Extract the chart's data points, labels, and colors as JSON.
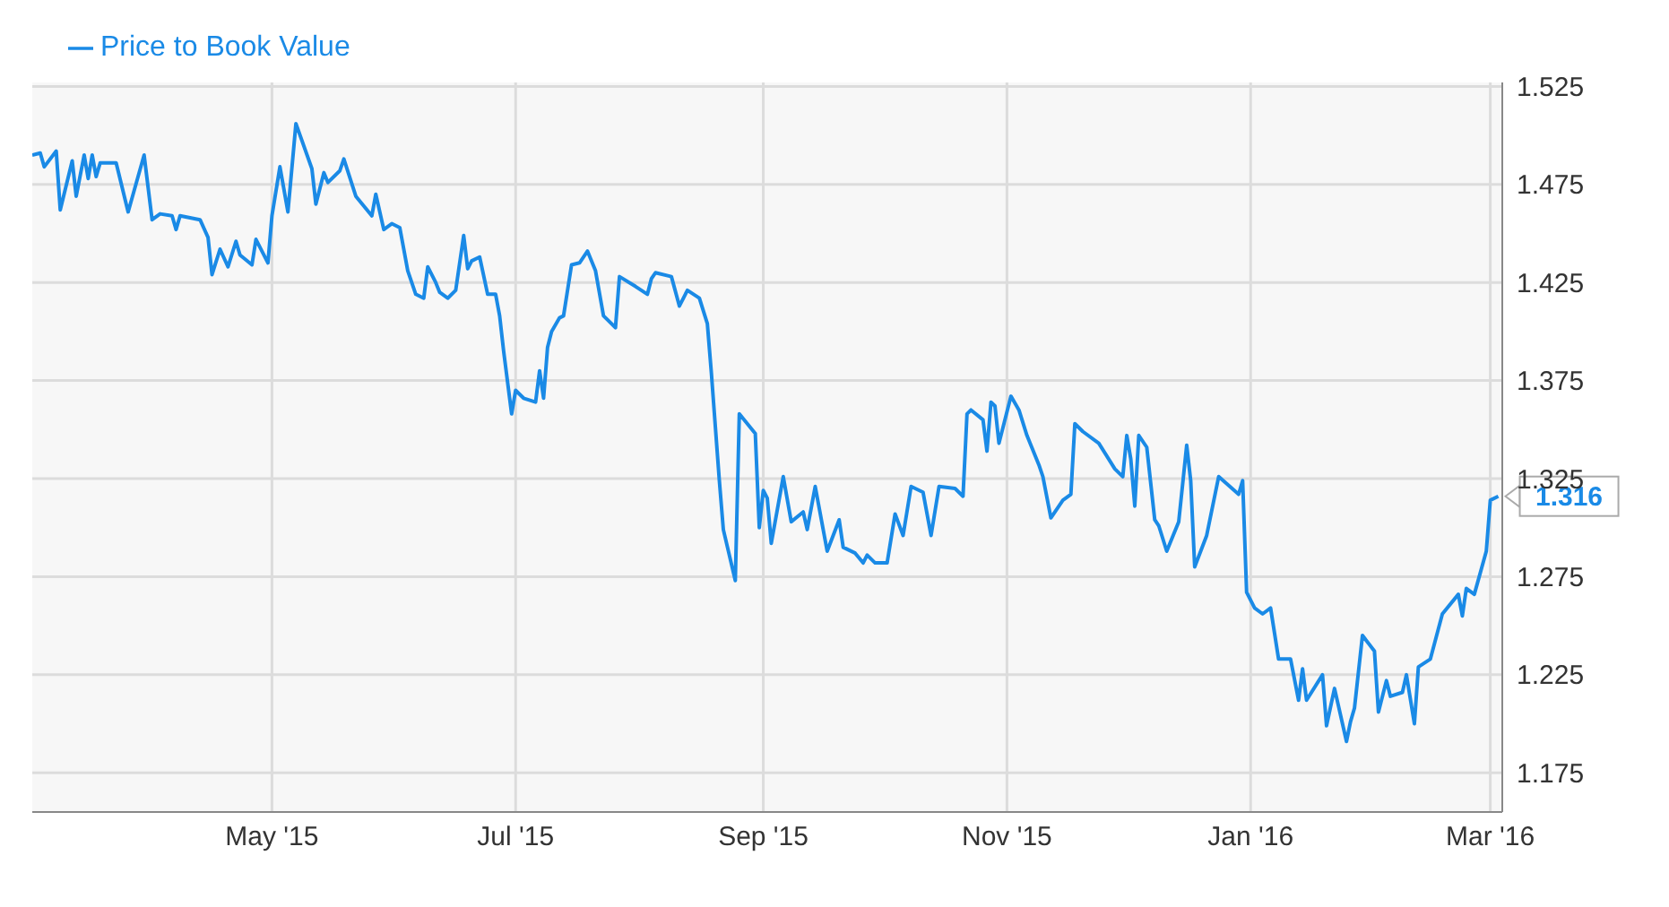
{
  "chart_data": {
    "type": "line",
    "legend": "top left",
    "grid": true,
    "marker": "none",
    "line_style": "solid",
    "xlim": [
      "2015-03-02",
      "2016-03-04"
    ],
    "xticks": [
      {
        "value": "2015-05-01",
        "label": "May '15"
      },
      {
        "value": "2015-07-01",
        "label": "Jul '15"
      },
      {
        "value": "2015-09-01",
        "label": "Sep '15"
      },
      {
        "value": "2015-11-01",
        "label": "Nov '15"
      },
      {
        "value": "2016-01-01",
        "label": "Jan '16"
      },
      {
        "value": "2016-03-01",
        "label": "Mar '16"
      }
    ],
    "ylim": [
      1.155,
      1.527
    ],
    "yticks": [
      1.175,
      1.225,
      1.275,
      1.325,
      1.375,
      1.425,
      1.475,
      1.525
    ],
    "annotations": [
      {
        "text": "1.316",
        "x": "2016-03-03",
        "y": 1.316
      }
    ],
    "series": [
      {
        "name": "Price to Book Value",
        "color": "#1a8ae6",
        "x": [
          "2015-03-02",
          "2015-03-04",
          "2015-03-05",
          "2015-03-08",
          "2015-03-09",
          "2015-03-12",
          "2015-03-13",
          "2015-03-15",
          "2015-03-16",
          "2015-03-17",
          "2015-03-18",
          "2015-03-19",
          "2015-03-23",
          "2015-03-26",
          "2015-03-30",
          "2015-04-01",
          "2015-04-03",
          "2015-04-06",
          "2015-04-07",
          "2015-04-08",
          "2015-04-13",
          "2015-04-15",
          "2015-04-16",
          "2015-04-18",
          "2015-04-20",
          "2015-04-22",
          "2015-04-23",
          "2015-04-26",
          "2015-04-27",
          "2015-04-30",
          "2015-05-01",
          "2015-05-03",
          "2015-05-05",
          "2015-05-07",
          "2015-05-11",
          "2015-05-12",
          "2015-05-14",
          "2015-05-15",
          "2015-05-18",
          "2015-05-19",
          "2015-05-22",
          "2015-05-26",
          "2015-05-27",
          "2015-05-29",
          "2015-05-31",
          "2015-06-02",
          "2015-06-04",
          "2015-06-06",
          "2015-06-08",
          "2015-06-09",
          "2015-06-11",
          "2015-06-12",
          "2015-06-14",
          "2015-06-16",
          "2015-06-18",
          "2015-06-19",
          "2015-06-20",
          "2015-06-22",
          "2015-06-24",
          "2015-06-26",
          "2015-06-27",
          "2015-06-28",
          "2015-06-30",
          "2015-07-01",
          "2015-07-03",
          "2015-07-06",
          "2015-07-07",
          "2015-07-08",
          "2015-07-09",
          "2015-07-10",
          "2015-07-12",
          "2015-07-13",
          "2015-07-15",
          "2015-07-17",
          "2015-07-19",
          "2015-07-21",
          "2015-07-23",
          "2015-07-26",
          "2015-07-27",
          "2015-07-31",
          "2015-08-03",
          "2015-08-04",
          "2015-08-05",
          "2015-08-09",
          "2015-08-11",
          "2015-08-13",
          "2015-08-16",
          "2015-08-18",
          "2015-08-19",
          "2015-08-21",
          "2015-08-22",
          "2015-08-25",
          "2015-08-26",
          "2015-08-30",
          "2015-08-31",
          "2015-09-01",
          "2015-09-02",
          "2015-09-03",
          "2015-09-06",
          "2015-09-08",
          "2015-09-11",
          "2015-09-12",
          "2015-09-14",
          "2015-09-17",
          "2015-09-20",
          "2015-09-21",
          "2015-09-24",
          "2015-09-26",
          "2015-09-27",
          "2015-09-29",
          "2015-10-02",
          "2015-10-04",
          "2015-10-06",
          "2015-10-08",
          "2015-10-11",
          "2015-10-13",
          "2015-10-15",
          "2015-10-19",
          "2015-10-21",
          "2015-10-22",
          "2015-10-23",
          "2015-10-26",
          "2015-10-27",
          "2015-10-28",
          "2015-10-29",
          "2015-10-30",
          "2015-11-02",
          "2015-11-04",
          "2015-11-06",
          "2015-11-09",
          "2015-11-10",
          "2015-11-12",
          "2015-11-15",
          "2015-11-17",
          "2015-11-18",
          "2015-11-20",
          "2015-11-24",
          "2015-11-28",
          "2015-11-30",
          "2015-12-01",
          "2015-12-02",
          "2015-12-03",
          "2015-12-04",
          "2015-12-06",
          "2015-12-08",
          "2015-12-09",
          "2015-12-11",
          "2015-12-14",
          "2015-12-16",
          "2015-12-17",
          "2015-12-18",
          "2015-12-21",
          "2015-12-24",
          "2015-12-29",
          "2015-12-30",
          "2015-12-31",
          "2016-01-02",
          "2016-01-04",
          "2016-01-06",
          "2016-01-08",
          "2016-01-11",
          "2016-01-13",
          "2016-01-14",
          "2016-01-15",
          "2016-01-19",
          "2016-01-20",
          "2016-01-22",
          "2016-01-25",
          "2016-01-26",
          "2016-01-27",
          "2016-01-29",
          "2016-02-01",
          "2016-02-02",
          "2016-02-04",
          "2016-02-05",
          "2016-02-08",
          "2016-02-09",
          "2016-02-11",
          "2016-02-12",
          "2016-02-15",
          "2016-02-18",
          "2016-02-22",
          "2016-02-23",
          "2016-02-24",
          "2016-02-26",
          "2016-02-29",
          "2016-03-01",
          "2016-03-03"
        ],
        "values": [
          1.49,
          1.491,
          1.484,
          1.492,
          1.462,
          1.487,
          1.469,
          1.49,
          1.478,
          1.49,
          1.479,
          1.486,
          1.486,
          1.461,
          1.49,
          1.457,
          1.46,
          1.459,
          1.452,
          1.459,
          1.457,
          1.448,
          1.429,
          1.442,
          1.433,
          1.446,
          1.439,
          1.434,
          1.447,
          1.435,
          1.459,
          1.484,
          1.461,
          1.506,
          1.483,
          1.465,
          1.481,
          1.476,
          1.482,
          1.488,
          1.469,
          1.459,
          1.47,
          1.452,
          1.455,
          1.453,
          1.431,
          1.419,
          1.417,
          1.433,
          1.425,
          1.42,
          1.417,
          1.421,
          1.449,
          1.432,
          1.436,
          1.438,
          1.419,
          1.419,
          1.408,
          1.39,
          1.358,
          1.37,
          1.366,
          1.364,
          1.38,
          1.366,
          1.392,
          1.4,
          1.407,
          1.408,
          1.434,
          1.435,
          1.441,
          1.431,
          1.408,
          1.402,
          1.428,
          1.423,
          1.419,
          1.427,
          1.43,
          1.428,
          1.413,
          1.421,
          1.417,
          1.404,
          1.379,
          1.324,
          1.299,
          1.273,
          1.358,
          1.348,
          1.3,
          1.319,
          1.315,
          1.292,
          1.326,
          1.303,
          1.308,
          1.299,
          1.321,
          1.288,
          1.304,
          1.29,
          1.287,
          1.282,
          1.286,
          1.282,
          1.282,
          1.307,
          1.296,
          1.321,
          1.318,
          1.296,
          1.321,
          1.32,
          1.316,
          1.358,
          1.36,
          1.355,
          1.339,
          1.364,
          1.362,
          1.343,
          1.367,
          1.36,
          1.347,
          1.332,
          1.326,
          1.305,
          1.314,
          1.317,
          1.353,
          1.349,
          1.343,
          1.33,
          1.326,
          1.347,
          1.335,
          1.311,
          1.347,
          1.341,
          1.304,
          1.301,
          1.288,
          1.303,
          1.342,
          1.324,
          1.28,
          1.296,
          1.326,
          1.317,
          1.324,
          1.267,
          1.259,
          1.256,
          1.259,
          1.233,
          1.233,
          1.212,
          1.228,
          1.212,
          1.225,
          1.199,
          1.218,
          1.191,
          1.201,
          1.208,
          1.245,
          1.237,
          1.206,
          1.222,
          1.214,
          1.216,
          1.225,
          1.2,
          1.229,
          1.233,
          1.256,
          1.266,
          1.255,
          1.269,
          1.266,
          1.288,
          1.314,
          1.316
        ]
      }
    ]
  }
}
